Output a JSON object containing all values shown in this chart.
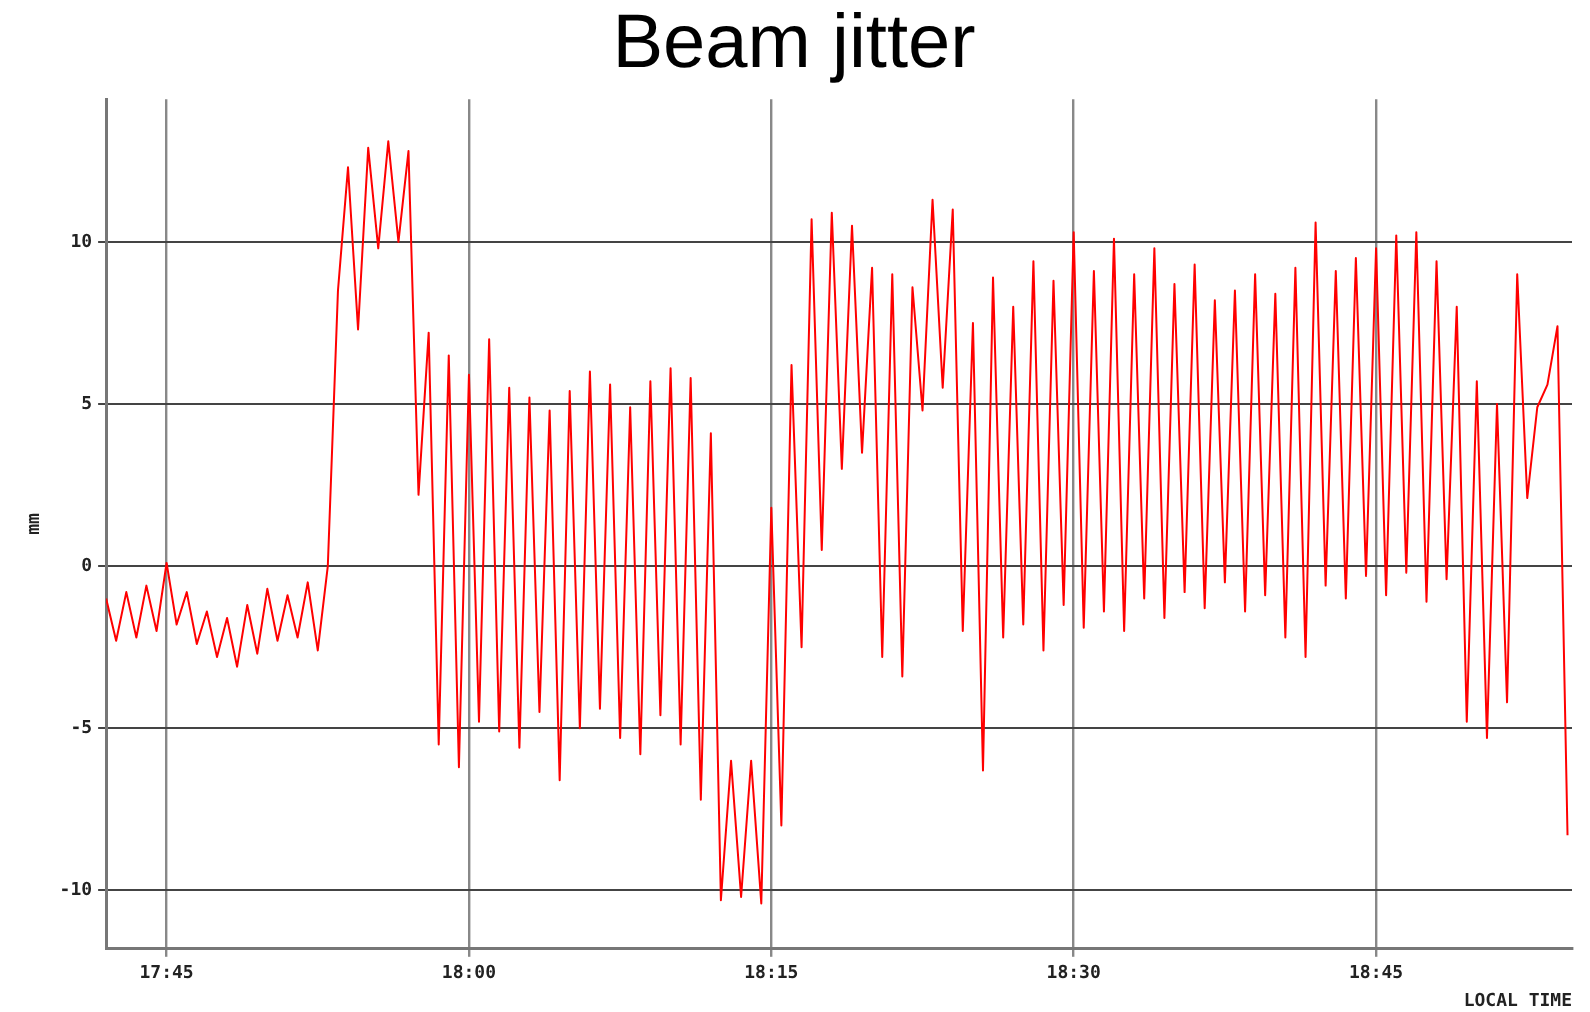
{
  "chart_data": {
    "type": "line",
    "title": "Beam jitter",
    "xlabel": "LOCAL TIME",
    "ylabel": "mm",
    "xlim": [
      17.7,
      18.912
    ],
    "xticks": [
      {
        "value": 17.75,
        "label": "17:45"
      },
      {
        "value": 18,
        "label": "18:00"
      },
      {
        "value": 18.25,
        "label": "18:15"
      },
      {
        "value": 18.5,
        "label": "18:30"
      },
      {
        "value": 18.75,
        "label": "18:45"
      }
    ],
    "ylim": [
      -11.8,
      14.4
    ],
    "yticks": [
      -10,
      -5,
      0,
      5,
      10
    ],
    "grid": true,
    "marker": "none",
    "line_style": "solid",
    "x": [
      17.7,
      17.7083,
      17.7167,
      17.725,
      17.7333,
      17.7417,
      17.75,
      17.7583,
      17.7667,
      17.775,
      17.7833,
      17.7917,
      17.8,
      17.8083,
      17.8167,
      17.825,
      17.8333,
      17.8417,
      17.85,
      17.8583,
      17.8667,
      17.875,
      17.8833,
      17.8917,
      17.9,
      17.9083,
      17.9167,
      17.925,
      17.9333,
      17.9417,
      17.95,
      17.9583,
      17.9667,
      17.975,
      17.9833,
      17.9917,
      18.0,
      18.0083,
      18.0167,
      18.025,
      18.0333,
      18.0417,
      18.05,
      18.0583,
      18.0667,
      18.075,
      18.0833,
      18.0917,
      18.1,
      18.1083,
      18.1167,
      18.125,
      18.1333,
      18.1417,
      18.15,
      18.1583,
      18.1667,
      18.175,
      18.1833,
      18.1917,
      18.2,
      18.2083,
      18.2167,
      18.225,
      18.2333,
      18.2417,
      18.25,
      18.2583,
      18.2667,
      18.275,
      18.2833,
      18.2917,
      18.3,
      18.3083,
      18.3167,
      18.325,
      18.3333,
      18.3417,
      18.35,
      18.3583,
      18.3667,
      18.375,
      18.3833,
      18.3917,
      18.4,
      18.4083,
      18.4167,
      18.425,
      18.4333,
      18.4417,
      18.45,
      18.4583,
      18.4667,
      18.475,
      18.4833,
      18.4917,
      18.5,
      18.5083,
      18.5167,
      18.525,
      18.5333,
      18.5417,
      18.55,
      18.5583,
      18.5667,
      18.575,
      18.5833,
      18.5917,
      18.6,
      18.6083,
      18.6167,
      18.625,
      18.6333,
      18.6417,
      18.65,
      18.6583,
      18.6667,
      18.675,
      18.6833,
      18.6917,
      18.7,
      18.7083,
      18.7167,
      18.725,
      18.7333,
      18.7417,
      18.75,
      18.7583,
      18.7667,
      18.775,
      18.7833,
      18.7917,
      18.8,
      18.8083,
      18.8167,
      18.825,
      18.8333,
      18.8417,
      18.85,
      18.8583,
      18.8667,
      18.875,
      18.8833,
      18.8917,
      18.9,
      18.9083
    ],
    "series": [
      {
        "color": "#ff0000",
        "values": [
          -1.0,
          -2.3,
          -0.8,
          -2.2,
          -0.6,
          -2.0,
          0.1,
          -1.8,
          -0.8,
          -2.4,
          -1.4,
          -2.8,
          -1.6,
          -3.1,
          -1.2,
          -2.7,
          -0.7,
          -2.3,
          -0.9,
          -2.2,
          -0.5,
          -2.6,
          0.0,
          8.5,
          12.3,
          7.3,
          12.9,
          9.8,
          13.1,
          10.0,
          12.8,
          2.2,
          7.2,
          -5.5,
          6.5,
          -6.2,
          5.9,
          -4.8,
          7.0,
          -5.1,
          5.5,
          -5.6,
          5.2,
          -4.5,
          4.8,
          -6.6,
          5.4,
          -5.0,
          6.0,
          -4.4,
          5.6,
          -5.3,
          4.9,
          -5.8,
          5.7,
          -4.6,
          6.1,
          -5.5,
          5.8,
          -7.2,
          4.1,
          -10.3,
          -6.0,
          -10.2,
          -6.0,
          -10.4,
          1.8,
          -8.0,
          6.2,
          -2.5,
          10.7,
          0.5,
          10.9,
          3.0,
          10.5,
          3.5,
          9.2,
          -2.8,
          9.0,
          -3.4,
          8.6,
          4.8,
          11.3,
          5.5,
          11.0,
          -2.0,
          7.5,
          -6.3,
          8.9,
          -2.2,
          8.0,
          -1.8,
          9.4,
          -2.6,
          8.8,
          -1.2,
          10.3,
          -1.9,
          9.1,
          -1.4,
          10.1,
          -2.0,
          9.0,
          -1.0,
          9.8,
          -1.6,
          8.7,
          -0.8,
          9.3,
          -1.3,
          8.2,
          -0.5,
          8.5,
          -1.4,
          9.0,
          -0.9,
          8.4,
          -2.2,
          9.2,
          -2.8,
          10.6,
          -0.6,
          9.1,
          -1.0,
          9.5,
          -0.3,
          9.8,
          -0.9,
          10.2,
          -0.2,
          10.3,
          -1.1,
          9.4,
          -0.4,
          8.0,
          -4.8,
          5.7,
          -5.3,
          5.0,
          -4.2,
          9.0,
          2.1,
          4.9,
          5.6,
          7.4,
          -8.3
        ]
      }
    ]
  }
}
